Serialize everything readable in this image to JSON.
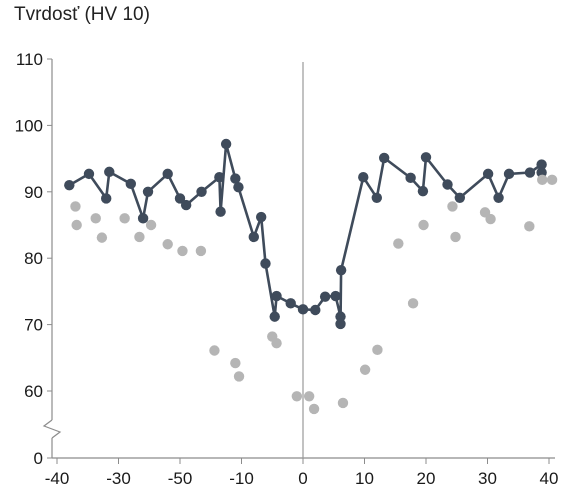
{
  "chart_data": {
    "type": "scatter",
    "title": "Tvrdosť (HV 10)",
    "xlabel": "",
    "ylabel": "",
    "ylim": [
      55,
      110
    ],
    "y_axis_break": true,
    "x_tick_labels": [
      "-40",
      "-30",
      "-50",
      "-10",
      "0",
      "10",
      "20",
      "30",
      "40"
    ],
    "y_tick_labels": [
      "0",
      "60",
      "70",
      "80",
      "90",
      "100",
      "110"
    ],
    "grid": false,
    "colors": {
      "line_series": "#3f4b5b",
      "scatter_series": "#b5b5b5",
      "axis": "#8c8c8c"
    },
    "series": [
      {
        "style": "line-markers",
        "points": [
          [
            -38,
            91
          ],
          [
            -34.8,
            92.7
          ],
          [
            -32,
            89
          ],
          [
            -31.5,
            93
          ],
          [
            -28,
            91.2
          ],
          [
            -26,
            86
          ],
          [
            -25.2,
            90
          ],
          [
            -22,
            92.7
          ],
          [
            -20,
            89
          ],
          [
            -19,
            88
          ],
          [
            -16.5,
            90
          ],
          [
            -13.6,
            92.2
          ],
          [
            -13.4,
            87
          ],
          [
            -12.5,
            97.2
          ],
          [
            -11,
            92
          ],
          [
            -10.5,
            90.7
          ],
          [
            -8,
            83.2
          ],
          [
            -6.8,
            86.2
          ],
          [
            -6.1,
            79.2
          ],
          [
            -4.6,
            71.2
          ],
          [
            -4.3,
            74.3
          ],
          [
            -2,
            73.2
          ],
          [
            0,
            72.3
          ],
          [
            2,
            72.2
          ],
          [
            3.6,
            74.2
          ],
          [
            5.3,
            74.3
          ],
          [
            6.1,
            71.2
          ],
          [
            6.1,
            70.1
          ],
          [
            6.2,
            78.2
          ],
          [
            9.8,
            92.2
          ],
          [
            12,
            89.1
          ],
          [
            13.2,
            95.1
          ],
          [
            17.5,
            92.1
          ],
          [
            19.5,
            90.1
          ],
          [
            20,
            95.2
          ],
          [
            23.5,
            91.1
          ],
          [
            25.5,
            89.1
          ],
          [
            30.1,
            92.7
          ],
          [
            31.8,
            89.1
          ],
          [
            33.5,
            92.7
          ],
          [
            36.9,
            92.9
          ],
          [
            38.8,
            94.1
          ],
          [
            38.8,
            92.9
          ]
        ]
      },
      {
        "style": "markers",
        "points": [
          [
            -37,
            87.8
          ],
          [
            -36.8,
            85
          ],
          [
            -33.7,
            86
          ],
          [
            -32.7,
            83.1
          ],
          [
            -29,
            86
          ],
          [
            -26.6,
            83.2
          ],
          [
            -24.7,
            85
          ],
          [
            -22,
            82.1
          ],
          [
            -19.6,
            81.1
          ],
          [
            -16.6,
            81.1
          ],
          [
            -14.4,
            66.1
          ],
          [
            -11,
            64.2
          ],
          [
            -10.4,
            62.2
          ],
          [
            -5,
            68.2
          ],
          [
            -4.3,
            67.2
          ],
          [
            -1,
            59.2
          ],
          [
            1,
            59.2
          ],
          [
            1.8,
            57.3
          ],
          [
            6.5,
            58.2
          ],
          [
            10.1,
            63.2
          ],
          [
            12.1,
            66.2
          ],
          [
            15.5,
            82.2
          ],
          [
            17.9,
            73.2
          ],
          [
            19.6,
            85
          ],
          [
            24.3,
            87.8
          ],
          [
            24.8,
            83.2
          ],
          [
            29.6,
            86.9
          ],
          [
            30.5,
            85.9
          ],
          [
            36.8,
            84.8
          ],
          [
            38.9,
            91.8
          ],
          [
            40.5,
            91.8
          ]
        ]
      }
    ]
  }
}
